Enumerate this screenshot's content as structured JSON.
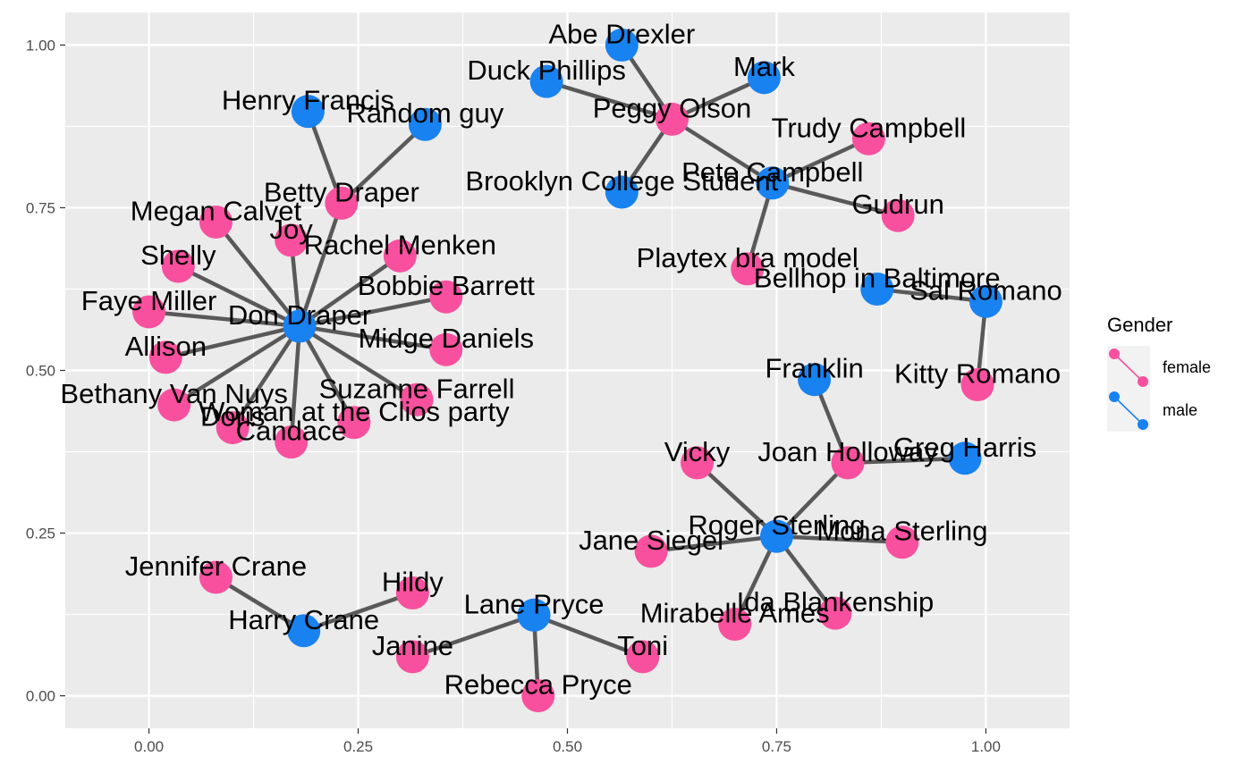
{
  "chart_data": {
    "type": "network",
    "xlim": [
      -0.1,
      1.1
    ],
    "ylim": [
      -0.05,
      1.05
    ],
    "x_ticks": [
      0.0,
      0.25,
      0.5,
      0.75,
      1.0
    ],
    "x_tick_labels": [
      "0.00",
      "0.25",
      "0.50",
      "0.75",
      "1.00"
    ],
    "y_ticks": [
      0.0,
      0.25,
      0.5,
      0.75,
      1.0
    ],
    "y_tick_labels": [
      "0.00",
      "0.25",
      "0.50",
      "0.75",
      "1.00"
    ],
    "grid": true,
    "legend": {
      "title": "Gender",
      "position": "right",
      "entries": [
        {
          "label": "female",
          "color": "#F8509E"
        },
        {
          "label": "male",
          "color": "#1882F1"
        }
      ]
    },
    "colors": {
      "female": "#F8509E",
      "male": "#1882F1",
      "edge": "#595959",
      "panel": "#EBEBEB",
      "grid": "#FFFFFF"
    },
    "nodes": [
      {
        "name": "Abe Drexler",
        "gender": "male",
        "x": 0.565,
        "y": 1.0
      },
      {
        "name": "Duck Phillips",
        "gender": "male",
        "x": 0.475,
        "y": 0.944
      },
      {
        "name": "Mark",
        "gender": "male",
        "x": 0.735,
        "y": 0.95
      },
      {
        "name": "Peggy Olson",
        "gender": "female",
        "x": 0.625,
        "y": 0.886
      },
      {
        "name": "Trudy Campbell",
        "gender": "female",
        "x": 0.86,
        "y": 0.856
      },
      {
        "name": "Pete Campbell",
        "gender": "male",
        "x": 0.745,
        "y": 0.788
      },
      {
        "name": "Brooklyn College Student",
        "gender": "male",
        "x": 0.565,
        "y": 0.774
      },
      {
        "name": "Gudrun",
        "gender": "female",
        "x": 0.895,
        "y": 0.738
      },
      {
        "name": "Playtex bra model",
        "gender": "female",
        "x": 0.715,
        "y": 0.656
      },
      {
        "name": "Bellhop in Baltimore",
        "gender": "male",
        "x": 0.87,
        "y": 0.625
      },
      {
        "name": "Sal Romano",
        "gender": "male",
        "x": 1.0,
        "y": 0.606
      },
      {
        "name": "Kitty Romano",
        "gender": "female",
        "x": 0.99,
        "y": 0.478
      },
      {
        "name": "Franklin",
        "gender": "male",
        "x": 0.795,
        "y": 0.486
      },
      {
        "name": "Joan Holloway",
        "gender": "female",
        "x": 0.835,
        "y": 0.358
      },
      {
        "name": "Greg Harris",
        "gender": "male",
        "x": 0.975,
        "y": 0.365
      },
      {
        "name": "Vicky",
        "gender": "female",
        "x": 0.655,
        "y": 0.358
      },
      {
        "name": "Roger Sterling",
        "gender": "male",
        "x": 0.75,
        "y": 0.245
      },
      {
        "name": "Mona Sterling",
        "gender": "female",
        "x": 0.9,
        "y": 0.236
      },
      {
        "name": "Jane Siegel",
        "gender": "female",
        "x": 0.6,
        "y": 0.222
      },
      {
        "name": "Ida Blankenship",
        "gender": "female",
        "x": 0.82,
        "y": 0.127
      },
      {
        "name": "Mirabelle Ames",
        "gender": "female",
        "x": 0.7,
        "y": 0.11
      },
      {
        "name": "Henry Francis",
        "gender": "male",
        "x": 0.19,
        "y": 0.898
      },
      {
        "name": "Random guy",
        "gender": "male",
        "x": 0.33,
        "y": 0.878
      },
      {
        "name": "Betty Draper",
        "gender": "female",
        "x": 0.23,
        "y": 0.757
      },
      {
        "name": "Megan Calvet",
        "gender": "female",
        "x": 0.08,
        "y": 0.728
      },
      {
        "name": "Joy",
        "gender": "female",
        "x": 0.17,
        "y": 0.7
      },
      {
        "name": "Rachel Menken",
        "gender": "female",
        "x": 0.3,
        "y": 0.676
      },
      {
        "name": "Shelly",
        "gender": "female",
        "x": 0.035,
        "y": 0.66
      },
      {
        "name": "Bobbie Barrett",
        "gender": "female",
        "x": 0.355,
        "y": 0.613
      },
      {
        "name": "Faye Miller",
        "gender": "female",
        "x": 0.0,
        "y": 0.59
      },
      {
        "name": "Don Draper",
        "gender": "male",
        "x": 0.18,
        "y": 0.568
      },
      {
        "name": "Midge Daniels",
        "gender": "female",
        "x": 0.355,
        "y": 0.532
      },
      {
        "name": "Allison",
        "gender": "female",
        "x": 0.02,
        "y": 0.52
      },
      {
        "name": "Suzanne Farrell",
        "gender": "female",
        "x": 0.32,
        "y": 0.455
      },
      {
        "name": "Bethany Van Nuys",
        "gender": "female",
        "x": 0.03,
        "y": 0.447
      },
      {
        "name": "Woman at the Clios party",
        "gender": "female",
        "x": 0.245,
        "y": 0.42
      },
      {
        "name": "Doris",
        "gender": "female",
        "x": 0.1,
        "y": 0.412
      },
      {
        "name": "Candace",
        "gender": "female",
        "x": 0.17,
        "y": 0.39
      },
      {
        "name": "Jennifer Crane",
        "gender": "female",
        "x": 0.08,
        "y": 0.182
      },
      {
        "name": "Hildy",
        "gender": "female",
        "x": 0.315,
        "y": 0.158
      },
      {
        "name": "Harry Crane",
        "gender": "male",
        "x": 0.185,
        "y": 0.1
      },
      {
        "name": "Lane Pryce",
        "gender": "male",
        "x": 0.46,
        "y": 0.124
      },
      {
        "name": "Janine",
        "gender": "female",
        "x": 0.315,
        "y": 0.06
      },
      {
        "name": "Toni",
        "gender": "female",
        "x": 0.59,
        "y": 0.06
      },
      {
        "name": "Rebecca Pryce",
        "gender": "female",
        "x": 0.465,
        "y": 0.0
      }
    ],
    "edges": [
      [
        "Duck Phillips",
        "Peggy Olson"
      ],
      [
        "Abe Drexler",
        "Peggy Olson"
      ],
      [
        "Mark",
        "Peggy Olson"
      ],
      [
        "Brooklyn College Student",
        "Peggy Olson"
      ],
      [
        "Peggy Olson",
        "Pete Campbell"
      ],
      [
        "Trudy Campbell",
        "Pete Campbell"
      ],
      [
        "Gudrun",
        "Pete Campbell"
      ],
      [
        "Playtex bra model",
        "Pete Campbell"
      ],
      [
        "Bellhop in Baltimore",
        "Sal Romano"
      ],
      [
        "Sal Romano",
        "Kitty Romano"
      ],
      [
        "Franklin",
        "Joan Holloway"
      ],
      [
        "Joan Holloway",
        "Greg Harris"
      ],
      [
        "Joan Holloway",
        "Roger Sterling"
      ],
      [
        "Vicky",
        "Roger Sterling"
      ],
      [
        "Jane Siegel",
        "Roger Sterling"
      ],
      [
        "Mona Sterling",
        "Roger Sterling"
      ],
      [
        "Ida Blankenship",
        "Roger Sterling"
      ],
      [
        "Mirabelle Ames",
        "Roger Sterling"
      ],
      [
        "Henry Francis",
        "Betty Draper"
      ],
      [
        "Random guy",
        "Betty Draper"
      ],
      [
        "Betty Draper",
        "Don Draper"
      ],
      [
        "Megan Calvet",
        "Don Draper"
      ],
      [
        "Joy",
        "Don Draper"
      ],
      [
        "Rachel Menken",
        "Don Draper"
      ],
      [
        "Shelly",
        "Don Draper"
      ],
      [
        "Bobbie Barrett",
        "Don Draper"
      ],
      [
        "Faye Miller",
        "Don Draper"
      ],
      [
        "Midge Daniels",
        "Don Draper"
      ],
      [
        "Allison",
        "Don Draper"
      ],
      [
        "Suzanne Farrell",
        "Don Draper"
      ],
      [
        "Bethany Van Nuys",
        "Don Draper"
      ],
      [
        "Woman at the Clios party",
        "Don Draper"
      ],
      [
        "Doris",
        "Don Draper"
      ],
      [
        "Candace",
        "Don Draper"
      ],
      [
        "Jennifer Crane",
        "Harry Crane"
      ],
      [
        "Hildy",
        "Harry Crane"
      ],
      [
        "Janine",
        "Lane Pryce"
      ],
      [
        "Toni",
        "Lane Pryce"
      ],
      [
        "Rebecca Pryce",
        "Lane Pryce"
      ]
    ]
  }
}
